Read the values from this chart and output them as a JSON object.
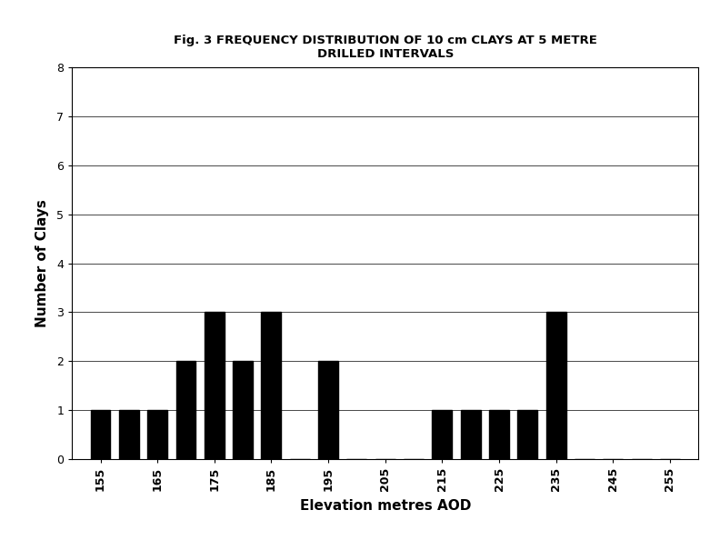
{
  "title_line1": "Fig. 3 FREQUENCY DISTRIBUTION OF 10 cm CLAYS AT 5 METRE",
  "title_line2": "DRILLED INTERVALS",
  "xlabel": "Elevation metres AOD",
  "ylabel": "Number of Clays",
  "bar_data": {
    "155": 1,
    "160": 1,
    "165": 1,
    "170": 2,
    "175": 3,
    "180": 2,
    "185": 3,
    "190": 0,
    "195": 2,
    "200": 0,
    "205": 0,
    "210": 0,
    "215": 1,
    "220": 1,
    "225": 1,
    "230": 1,
    "235": 3,
    "240": 0,
    "245": 0,
    "250": 0,
    "255": 0
  },
  "xticks": [
    155,
    165,
    175,
    185,
    195,
    205,
    215,
    225,
    235,
    245,
    255
  ],
  "yticks": [
    0,
    1,
    2,
    3,
    4,
    5,
    6,
    7,
    8
  ],
  "ylim": [
    0,
    8
  ],
  "xlim": [
    150,
    260
  ],
  "bar_color": "#000000",
  "bar_width": 3.5,
  "background_color": "#ffffff",
  "grid_color": "#000000",
  "title_fontsize": 9.5,
  "axis_label_fontsize": 11,
  "tick_fontsize": 9
}
